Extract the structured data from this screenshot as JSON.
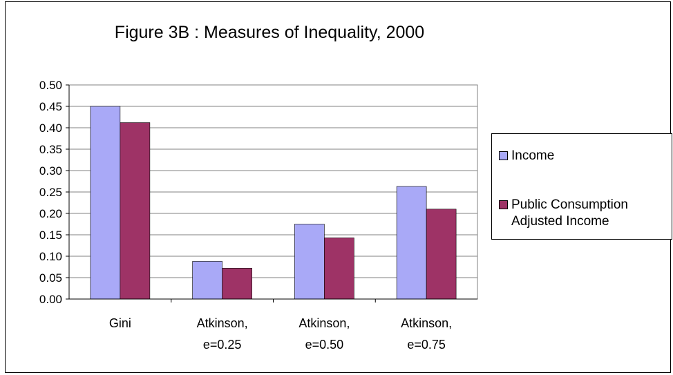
{
  "chart_data": {
    "type": "bar",
    "title": "Figure 3B : Measures of Inequality, 2000",
    "xlabel": "",
    "ylabel": "",
    "ylim": [
      0,
      0.5
    ],
    "yticks": [
      "0.00",
      "0.05",
      "0.10",
      "0.15",
      "0.20",
      "0.25",
      "0.30",
      "0.35",
      "0.40",
      "0.45",
      "0.50"
    ],
    "categories": [
      [
        "Gini"
      ],
      [
        "Atkinson,",
        "e=0.25"
      ],
      [
        "Atkinson,",
        "e=0.50"
      ],
      [
        "Atkinson,",
        "e=0.75"
      ]
    ],
    "series": [
      {
        "name": "Income",
        "color": "#a9a9f7",
        "values": [
          0.45,
          0.088,
          0.175,
          0.263
        ]
      },
      {
        "name": "Public Consumption Adjusted Income",
        "color": "#9e3366",
        "values": [
          0.412,
          0.072,
          0.143,
          0.21
        ]
      }
    ],
    "grid": true,
    "plot_background": "#ffffff",
    "legend_position": "right"
  }
}
